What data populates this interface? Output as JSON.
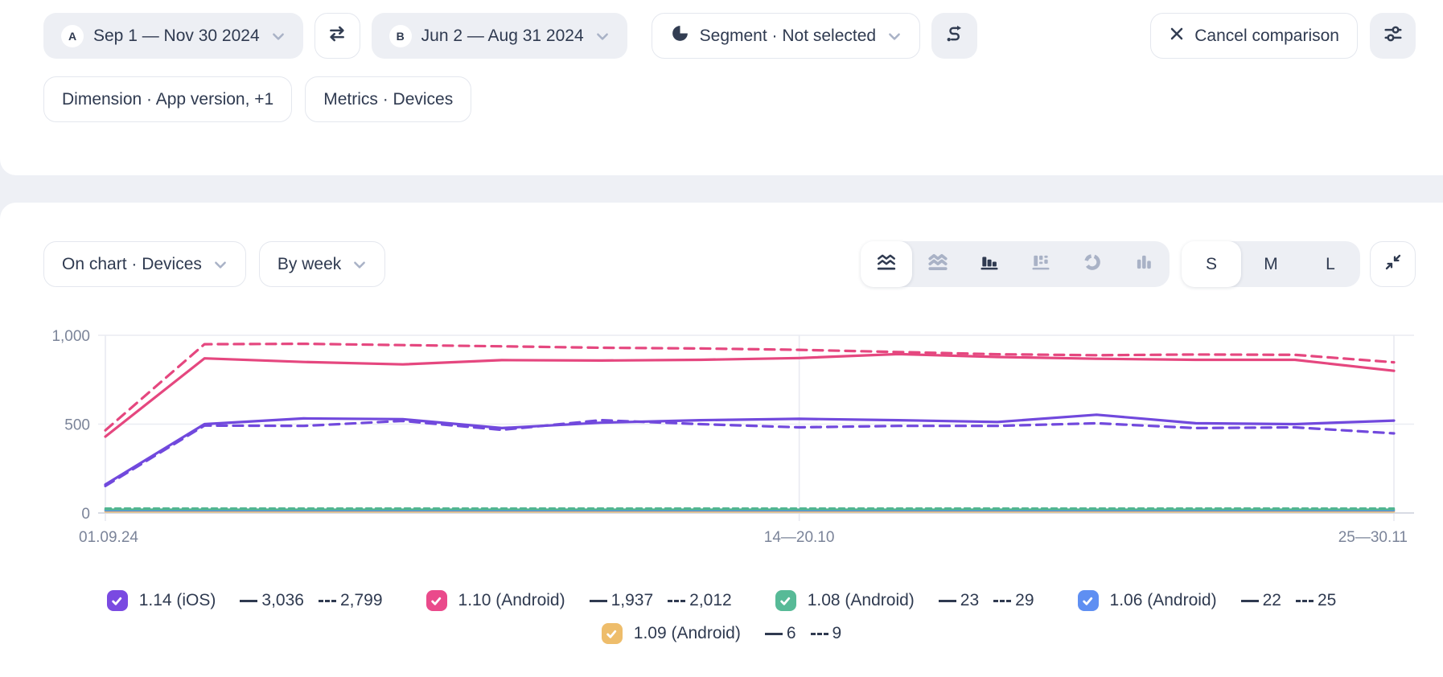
{
  "toolbar": {
    "period_a": {
      "badge": "A",
      "label": "Sep 1 — Nov 30 2024"
    },
    "period_b": {
      "badge": "B",
      "label": "Jun 2 — Aug 31 2024"
    },
    "segment_label": "Segment · Not selected",
    "cancel_label": "Cancel comparison"
  },
  "filters": {
    "dimension_label": "Dimension · App version, +1",
    "metrics_label": "Metrics · Devices"
  },
  "controls": {
    "on_chart_label": "On chart · Devices",
    "granularity_label": "By week",
    "chart_types": [
      "line-chart",
      "stacked-area",
      "bar-chart",
      "stacked-bar",
      "donut-chart",
      "column-chart"
    ],
    "selected_chart_type": "line-chart",
    "sizes": [
      "S",
      "M",
      "L"
    ],
    "selected_size": "S"
  },
  "chart_data": {
    "type": "line",
    "title": "Devices by app version, weekly, comparison of two periods",
    "solid_period": "A · Sep 1 — Nov 30 2024",
    "dashed_period": "B · Jun 2 — Aug 31 2024",
    "n_points": 14,
    "ylim": [
      0,
      1000
    ],
    "yticks": [
      0,
      500,
      1000
    ],
    "ytick_labels": [
      "0",
      "500",
      "1,000"
    ],
    "x_tick_positions": [
      0,
      7,
      13
    ],
    "x_tick_labels": [
      "01.09.24",
      "14—20.10",
      "25—30.11"
    ],
    "grid": true,
    "legend_position": "bottom",
    "series": [
      {
        "name": "1.09 (Android) · A",
        "color": "#eab762",
        "dashed": false,
        "values": [
          8,
          8,
          8,
          8,
          8,
          8,
          8,
          8,
          8,
          8,
          8,
          8,
          8,
          8
        ]
      },
      {
        "name": "1.09 (Android) · B",
        "color": "#eab762",
        "dashed": true,
        "values": [
          10,
          10,
          10,
          10,
          10,
          10,
          10,
          10,
          10,
          10,
          10,
          10,
          10,
          10
        ]
      },
      {
        "name": "1.06 (Android) · A",
        "color": "#5c8cf0",
        "dashed": false,
        "values": [
          14,
          14,
          14,
          14,
          14,
          14,
          14,
          14,
          14,
          14,
          14,
          14,
          14,
          14
        ]
      },
      {
        "name": "1.06 (Android) · B",
        "color": "#5c8cf0",
        "dashed": true,
        "values": [
          17,
          17,
          17,
          17,
          17,
          17,
          17,
          17,
          17,
          17,
          17,
          17,
          17,
          17
        ]
      },
      {
        "name": "1.08 (Android) · A",
        "color": "#52b592",
        "dashed": false,
        "values": [
          20,
          20,
          20,
          20,
          20,
          20,
          20,
          20,
          20,
          20,
          20,
          20,
          20,
          20
        ]
      },
      {
        "name": "1.08 (Android) · B",
        "color": "#52b592",
        "dashed": true,
        "values": [
          26,
          26,
          26,
          26,
          26,
          26,
          26,
          26,
          26,
          26,
          26,
          26,
          26,
          26
        ]
      },
      {
        "name": "1.14 (iOS) · B",
        "color": "#7149dd",
        "dashed": true,
        "values": [
          152,
          492,
          490,
          518,
          468,
          522,
          500,
          482,
          490,
          490,
          505,
          478,
          482,
          448
        ]
      },
      {
        "name": "1.14 (iOS) · A",
        "color": "#7149dd",
        "dashed": false,
        "values": [
          160,
          500,
          532,
          528,
          478,
          508,
          522,
          530,
          522,
          512,
          553,
          505,
          500,
          520
        ]
      },
      {
        "name": "1.10 (Android) · A",
        "color": "#e5477f",
        "dashed": false,
        "values": [
          430,
          870,
          850,
          836,
          860,
          858,
          862,
          872,
          894,
          878,
          868,
          862,
          862,
          800
        ]
      },
      {
        "name": "1.10 (Android) · B",
        "color": "#e5477f",
        "dashed": true,
        "values": [
          465,
          950,
          952,
          945,
          938,
          930,
          926,
          918,
          906,
          893,
          888,
          892,
          890,
          848
        ]
      }
    ]
  },
  "legend": {
    "items": [
      {
        "label": "1.14 (iOS)",
        "color": "#7a4ae1",
        "solid_value": "3,036",
        "dashed_value": "2,799"
      },
      {
        "label": "1.10 (Android)",
        "color": "#ea4a8b",
        "solid_value": "1,937",
        "dashed_value": "2,012"
      },
      {
        "label": "1.08 (Android)",
        "color": "#57ba97",
        "solid_value": "23",
        "dashed_value": "29"
      },
      {
        "label": "1.06 (Android)",
        "color": "#5f8ff2",
        "solid_value": "22",
        "dashed_value": "25"
      },
      {
        "label": "1.09 (Android)",
        "color": "#eebd6b",
        "solid_value": "6",
        "dashed_value": "9"
      }
    ]
  }
}
